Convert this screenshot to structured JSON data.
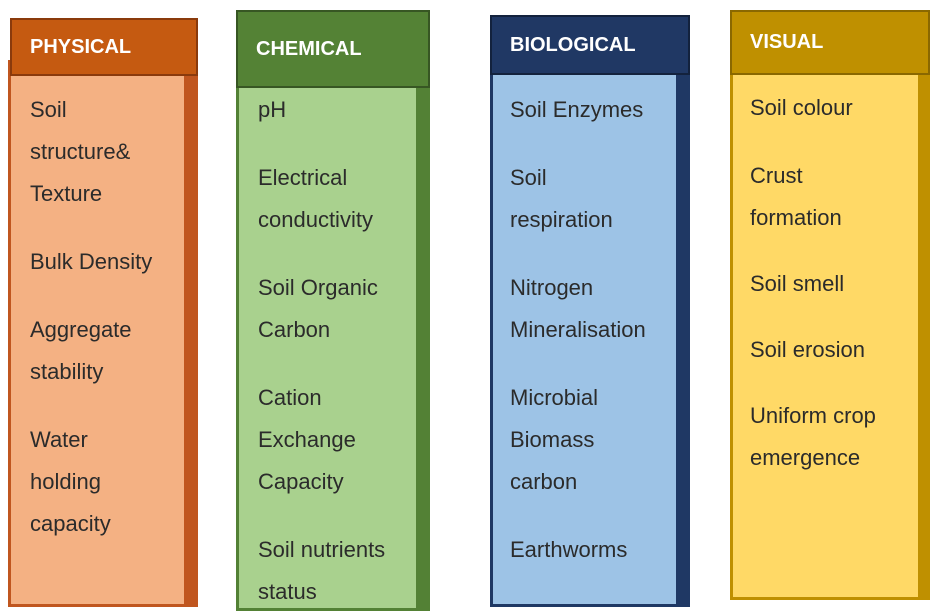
{
  "columns": [
    {
      "header": "PHYSICAL",
      "items": [
        [
          "Soil",
          "structure&",
          "Texture"
        ],
        [
          "Bulk Density"
        ],
        [
          "Aggregate",
          "stability"
        ],
        [
          "Water",
          "holding",
          "capacity"
        ]
      ]
    },
    {
      "header": "CHEMICAL",
      "items": [
        [
          "pH"
        ],
        [
          "Electrical",
          "conductivity"
        ],
        [
          "Soil Organic",
          "Carbon"
        ],
        [
          "Cation",
          "Exchange",
          "Capacity"
        ],
        [
          "Soil nutrients",
          "status"
        ]
      ]
    },
    {
      "header": "BIOLOGICAL",
      "items": [
        [
          "Soil Enzymes"
        ],
        [
          "Soil",
          "respiration"
        ],
        [
          "Nitrogen",
          "Mineralisation"
        ],
        [
          "Microbial",
          "Biomass",
          "carbon"
        ],
        [
          "Earthworms"
        ]
      ]
    },
    {
      "header": "VISUAL",
      "items": [
        [
          "Soil colour"
        ],
        [
          "Crust",
          "formation"
        ],
        [
          "Soil smell"
        ],
        [
          "Soil erosion"
        ],
        [
          "Uniform crop",
          "emergence"
        ]
      ]
    }
  ]
}
